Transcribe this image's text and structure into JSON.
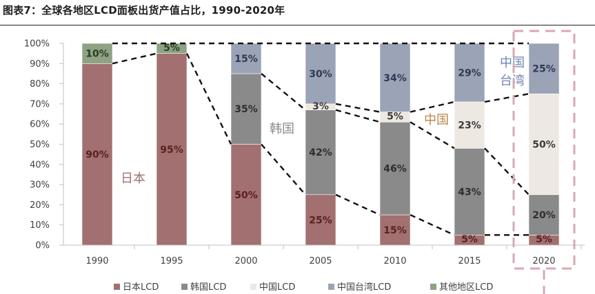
{
  "title": "图表7：全球各地区LCD面板出货产值占比，1990-2020年",
  "chart_data": {
    "type": "bar",
    "stacked": true,
    "percent": true,
    "categories": [
      "1990",
      "1995",
      "2000",
      "2005",
      "2010",
      "2015",
      "2020"
    ],
    "ylim": [
      0,
      100
    ],
    "yticks": [
      "0%",
      "10%",
      "20%",
      "30%",
      "40%",
      "50%",
      "60%",
      "70%",
      "80%",
      "90%",
      "100%"
    ],
    "series": [
      {
        "name": "日本LCD",
        "color": "#a27070",
        "label_color": "#5a1f1f",
        "values": [
          90,
          95,
          50,
          25,
          15,
          5,
          5
        ]
      },
      {
        "name": "韩国LCD",
        "color": "#8a8a8a",
        "label_color": "#2e2e2e",
        "values": [
          0,
          0,
          35,
          42,
          46,
          43,
          20
        ]
      },
      {
        "name": "中国LCD",
        "color": "#eee8e2",
        "label_color": "#3a3a3a",
        "values": [
          0,
          0,
          0,
          3,
          5,
          23,
          50
        ]
      },
      {
        "name": "中国台湾LCD",
        "color": "#9ba3b6",
        "label_color": "#2f3a52",
        "values": [
          0,
          0,
          15,
          30,
          34,
          29,
          25
        ]
      },
      {
        "name": "其他地区LCD",
        "color": "#8da383",
        "label_color": "#2c3d24",
        "values": [
          10,
          5,
          0,
          0,
          0,
          0,
          0
        ]
      }
    ],
    "annotations": [
      {
        "text": "日本",
        "color": "#a47070"
      },
      {
        "text": "韩国",
        "color": "#8a8a8a"
      },
      {
        "text": "中国",
        "color": "#b8864a"
      },
      {
        "text": "中国",
        "color": "#6f86b0"
      },
      {
        "text": "台湾",
        "color": "#6f86b0"
      }
    ],
    "highlight": {
      "category": "2020",
      "color": "#d8a8b0"
    }
  }
}
